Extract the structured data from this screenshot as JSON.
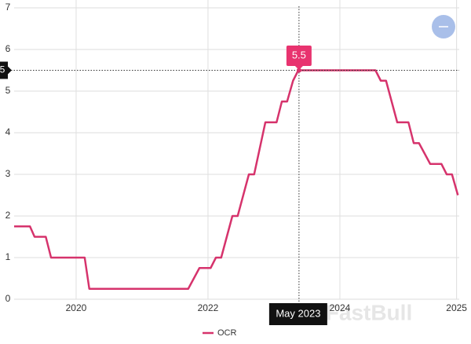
{
  "chart_data": {
    "type": "line",
    "x": [
      2019.06,
      2019.3,
      2019.37,
      2019.54,
      2019.62,
      2020.13,
      2020.2,
      2021.7,
      2021.87,
      2022.04,
      2022.12,
      2022.2,
      2022.37,
      2022.45,
      2022.62,
      2022.7,
      2022.87,
      2023.04,
      2023.12,
      2023.2,
      2023.29,
      2023.37,
      2024.54,
      2024.62,
      2024.7,
      2024.87,
      2025.04,
      2025.12,
      2025.2,
      2025.37,
      2025.54,
      2025.62,
      2025.7,
      2025.79
    ],
    "series": [
      {
        "name": "OCR",
        "color": "#d6336c",
        "values": [
          1.75,
          1.75,
          1.5,
          1.5,
          1.0,
          1.0,
          0.25,
          0.25,
          0.75,
          0.75,
          1.0,
          1.0,
          2.0,
          2.0,
          3.0,
          3.0,
          4.25,
          4.25,
          4.75,
          4.75,
          5.25,
          5.5,
          5.5,
          5.25,
          5.25,
          4.25,
          4.25,
          3.75,
          3.75,
          3.25,
          3.25,
          3.0,
          3.0,
          2.5
        ]
      }
    ],
    "xlim": [
      2019.06,
      2025.81
    ],
    "xticks": [
      2020,
      2022,
      2024,
      {
        "value": 2025.77,
        "label": "2025"
      }
    ],
    "ylim": [
      0,
      7
    ],
    "yticks": [
      0,
      1,
      2,
      3,
      4,
      5,
      6,
      7
    ],
    "grid": true,
    "crosshair": {
      "x": 2023.38,
      "y": 5.5,
      "x_label": "May 2023",
      "y_label": "5.5"
    },
    "watermark": "FastBull"
  }
}
